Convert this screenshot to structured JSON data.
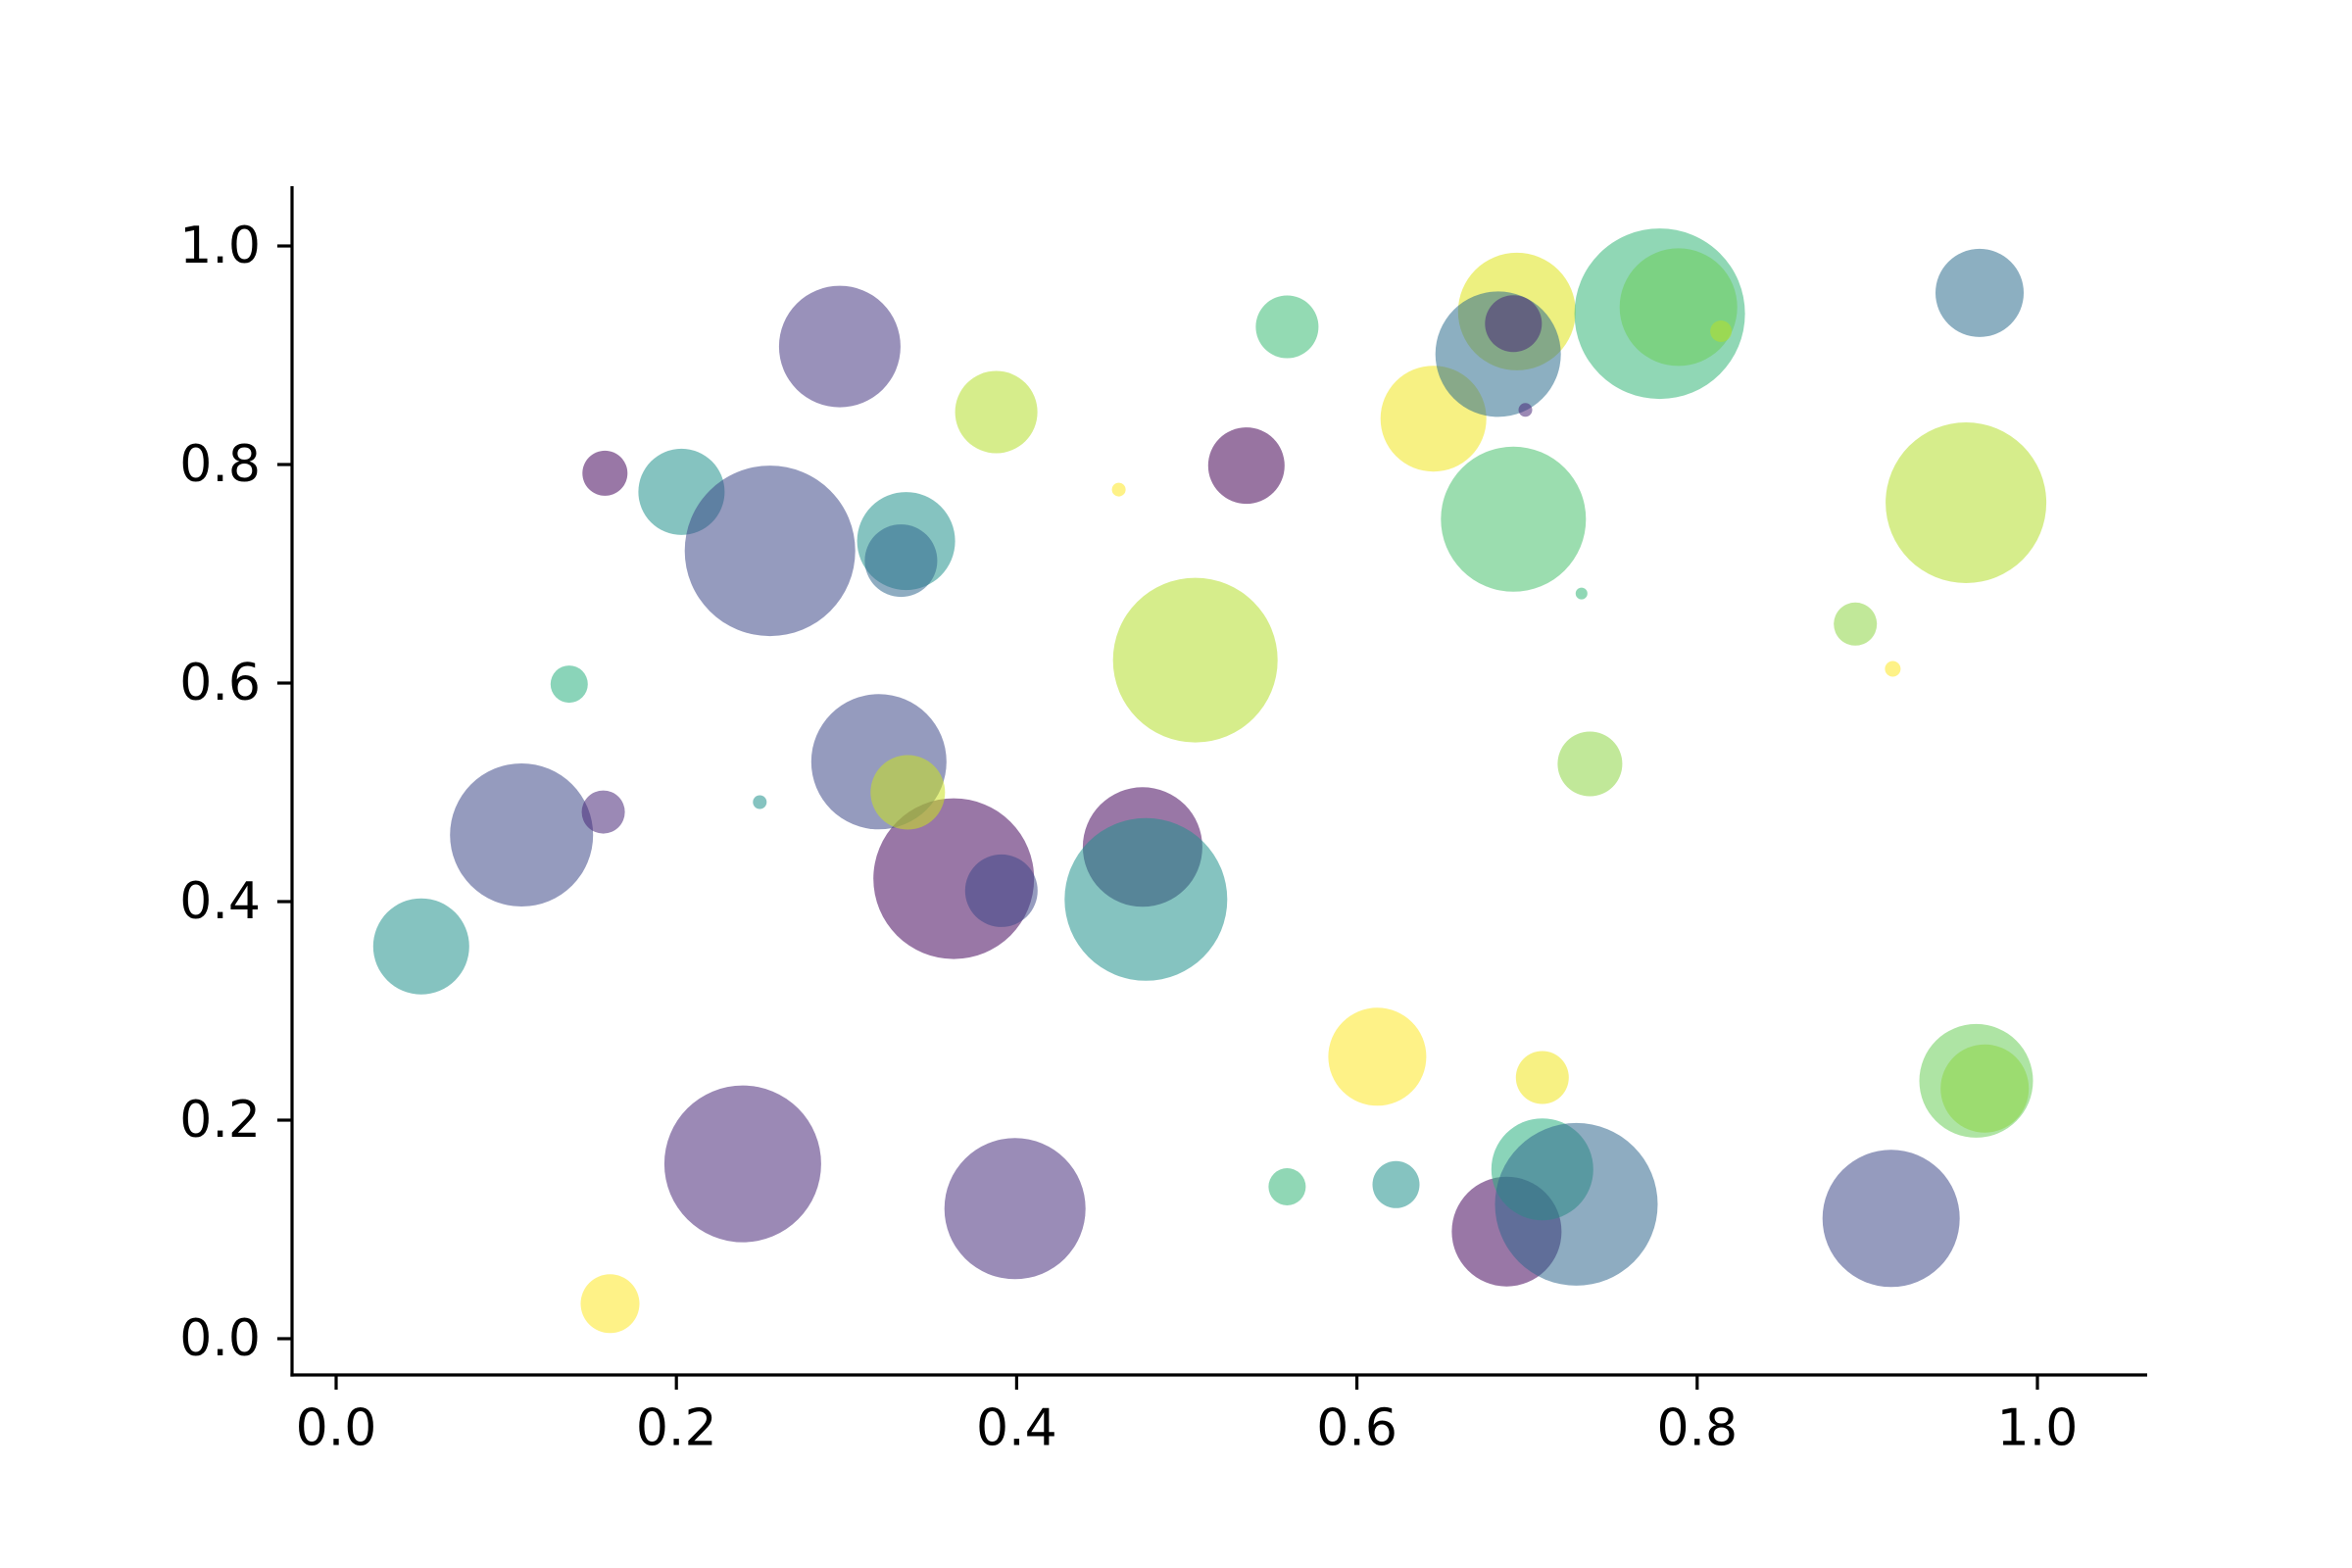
{
  "figure": {
    "background": "#ffffff",
    "axis_color": "#000000"
  },
  "chart_data": {
    "type": "scatter",
    "subtype": "bubble",
    "title": "",
    "xlabel": "",
    "ylabel": "",
    "grid": false,
    "legend_position": "none",
    "xlim": [
      -0.026,
      1.065
    ],
    "ylim": [
      -0.034,
      1.054
    ],
    "x_tick_values": [
      0.0,
      0.2,
      0.4,
      0.6,
      0.8,
      1.0
    ],
    "x_tick_labels": [
      "0.0",
      "0.2",
      "0.4",
      "0.6",
      "0.8",
      "1.0"
    ],
    "y_tick_values": [
      0.0,
      0.2,
      0.4,
      0.6,
      0.8,
      1.0
    ],
    "y_tick_labels": [
      "0.0",
      "0.2",
      "0.4",
      "0.6",
      "0.8",
      "1.0"
    ],
    "colormap": "viridis",
    "marker_alpha": 0.55,
    "points": [
      {
        "x": 0.296,
        "y": 0.908,
        "r": 62,
        "color": "#453781"
      },
      {
        "x": 0.388,
        "y": 0.848,
        "r": 42,
        "color": "#b4de2c"
      },
      {
        "x": 0.158,
        "y": 0.792,
        "r": 23,
        "color": "#46085c"
      },
      {
        "x": 0.203,
        "y": 0.775,
        "r": 44,
        "color": "#21918c"
      },
      {
        "x": 0.255,
        "y": 0.721,
        "r": 87,
        "color": "#3e4989"
      },
      {
        "x": 0.335,
        "y": 0.73,
        "r": 50,
        "color": "#21918c"
      },
      {
        "x": 0.332,
        "y": 0.712,
        "r": 37,
        "color": "#31688e"
      },
      {
        "x": 0.137,
        "y": 0.599,
        "r": 19,
        "color": "#2ab07f"
      },
      {
        "x": 0.109,
        "y": 0.461,
        "r": 73,
        "color": "#3e4989"
      },
      {
        "x": 0.157,
        "y": 0.482,
        "r": 22,
        "color": "#482878"
      },
      {
        "x": 0.249,
        "y": 0.491,
        "r": 7,
        "color": "#21918c"
      },
      {
        "x": 0.05,
        "y": 0.359,
        "r": 49,
        "color": "#21918c"
      },
      {
        "x": 0.239,
        "y": 0.16,
        "r": 80,
        "color": "#482878"
      },
      {
        "x": 0.161,
        "y": 0.032,
        "r": 30,
        "color": "#fde725"
      },
      {
        "x": 0.399,
        "y": 0.119,
        "r": 72,
        "color": "#472d7b"
      },
      {
        "x": 0.474,
        "y": 0.45,
        "r": 61,
        "color": "#46085c"
      },
      {
        "x": 0.363,
        "y": 0.421,
        "r": 82,
        "color": "#46085c"
      },
      {
        "x": 0.391,
        "y": 0.41,
        "r": 37,
        "color": "#3e4989"
      },
      {
        "x": 0.476,
        "y": 0.402,
        "r": 83,
        "color": "#21918c"
      },
      {
        "x": 0.505,
        "y": 0.621,
        "r": 84,
        "color": "#b4de2c"
      },
      {
        "x": 0.535,
        "y": 0.799,
        "r": 39,
        "color": "#440154"
      },
      {
        "x": 0.46,
        "y": 0.777,
        "r": 7,
        "color": "#fde725"
      },
      {
        "x": 0.559,
        "y": 0.926,
        "r": 32,
        "color": "#3bbb75"
      },
      {
        "x": 0.612,
        "y": 0.258,
        "r": 50,
        "color": "#fde725"
      },
      {
        "x": 0.709,
        "y": 0.239,
        "r": 27,
        "color": "#f1e51d"
      },
      {
        "x": 0.559,
        "y": 0.139,
        "r": 19,
        "color": "#35b779"
      },
      {
        "x": 0.623,
        "y": 0.141,
        "r": 24,
        "color": "#21918c"
      },
      {
        "x": 0.688,
        "y": 0.098,
        "r": 56,
        "color": "#46085c"
      },
      {
        "x": 0.709,
        "y": 0.155,
        "r": 52,
        "color": "#2ab07f"
      },
      {
        "x": 0.729,
        "y": 0.123,
        "r": 83,
        "color": "#31688e"
      },
      {
        "x": 0.914,
        "y": 0.11,
        "r": 70,
        "color": "#3e4989"
      },
      {
        "x": 0.964,
        "y": 0.236,
        "r": 58,
        "color": "#6ccd5a"
      },
      {
        "x": 0.969,
        "y": 0.229,
        "r": 45,
        "color": "#8ed645"
      },
      {
        "x": 0.645,
        "y": 0.842,
        "r": 54,
        "color": "#f1e51d"
      },
      {
        "x": 0.694,
        "y": 0.94,
        "r": 60,
        "color": "#dfe318"
      },
      {
        "x": 0.683,
        "y": 0.901,
        "r": 64,
        "color": "#2e6d8e"
      },
      {
        "x": 0.692,
        "y": 0.929,
        "r": 29,
        "color": "#482878"
      },
      {
        "x": 0.699,
        "y": 0.85,
        "r": 7,
        "color": "#482878"
      },
      {
        "x": 0.778,
        "y": 0.938,
        "r": 87,
        "color": "#35b779"
      },
      {
        "x": 0.789,
        "y": 0.944,
        "r": 60,
        "color": "#6ccd5a"
      },
      {
        "x": 0.814,
        "y": 0.922,
        "r": 11,
        "color": "#b4de2c"
      },
      {
        "x": 0.692,
        "y": 0.75,
        "r": 74,
        "color": "#48c16e"
      },
      {
        "x": 0.732,
        "y": 0.682,
        "r": 6,
        "color": "#35b779"
      },
      {
        "x": 0.737,
        "y": 0.526,
        "r": 33,
        "color": "#8ed645"
      },
      {
        "x": 0.966,
        "y": 0.957,
        "r": 45,
        "color": "#2e6d8e"
      },
      {
        "x": 0.958,
        "y": 0.765,
        "r": 82,
        "color": "#b4de2c"
      },
      {
        "x": 0.893,
        "y": 0.654,
        "r": 22,
        "color": "#8ed645"
      },
      {
        "x": 0.915,
        "y": 0.613,
        "r": 8,
        "color": "#fde725"
      },
      {
        "x": 0.319,
        "y": 0.528,
        "r": 69,
        "color": "#3e4989"
      },
      {
        "x": 0.336,
        "y": 0.5,
        "r": 38,
        "color": "#cae11f"
      }
    ]
  }
}
